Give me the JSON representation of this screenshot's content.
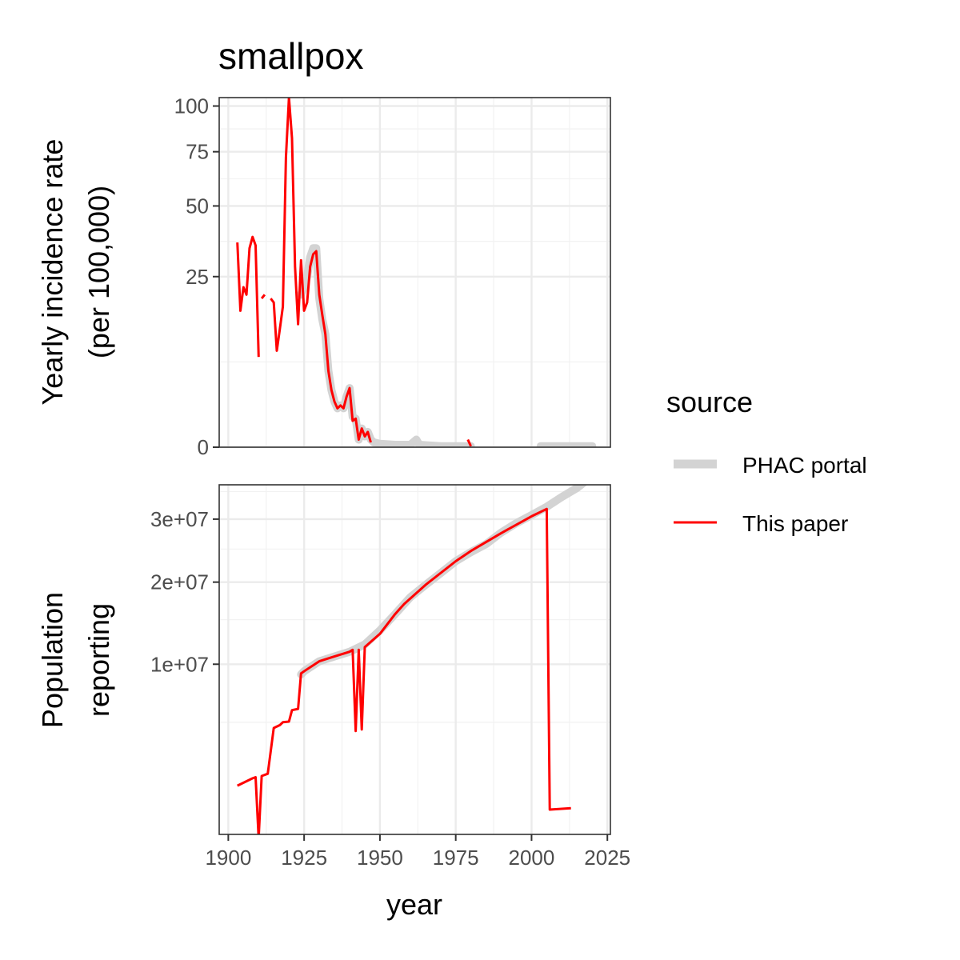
{
  "chart_data": {
    "type": "line",
    "title": "smallpox",
    "xlabel": "year",
    "x_ticks": [
      1900,
      1925,
      1950,
      1975,
      2000,
      2025
    ],
    "xlim": [
      1897,
      2026
    ],
    "grid": true,
    "legend": {
      "title": "source",
      "position": "right",
      "entries": [
        {
          "name": "PHAC portal",
          "color": "#d3d3d3"
        },
        {
          "name": "This paper",
          "color": "#ff0000"
        }
      ]
    },
    "panels": [
      {
        "id": "incidence",
        "ylabel_line1": "Yearly incidence rate",
        "ylabel_line2": "(per 100,000)",
        "y_scale": "sqrt",
        "ylim": [
          0,
          105
        ],
        "y_ticks": [
          0,
          25,
          50,
          75,
          100
        ],
        "y_tick_labels": [
          "0",
          "25",
          "50",
          "75",
          "100"
        ],
        "series": [
          {
            "name": "PHAC portal",
            "color": "#d3d3d3",
            "segments": [
              [
                [
                  1924,
                  20
                ],
                [
                  1925,
                  22
                ],
                [
                  1926,
                  25
                ],
                [
                  1927,
                  31
                ],
                [
                  1928,
                  34
                ],
                [
                  1929,
                  34
                ],
                [
                  1930,
                  19
                ],
                [
                  1931,
                  14
                ],
                [
                  1932,
                  11
                ],
                [
                  1933,
                  5
                ],
                [
                  1934,
                  2.8
                ],
                [
                  1935,
                  1.8
                ],
                [
                  1936,
                  1.3
                ],
                [
                  1937,
                  1.5
                ],
                [
                  1938,
                  1.3
                ],
                [
                  1939,
                  2.2
                ],
                [
                  1940,
                  3
                ],
                [
                  1941,
                  0.8
                ],
                [
                  1942,
                  0.7
                ],
                [
                  1943,
                  0.05
                ],
                [
                  1944,
                  0.3
                ],
                [
                  1945,
                  0.1
                ],
                [
                  1946,
                  0.2
                ],
                [
                  1947,
                  0.05
                ],
                [
                  1948,
                  0.02
                ],
                [
                  1950,
                  0.01
                ],
                [
                  1955,
                  0.005
                ],
                [
                  1960,
                  0.005
                ],
                [
                  1962,
                  0.05
                ],
                [
                  1963,
                  0.005
                ],
                [
                  1970,
                  0.001
                ],
                [
                  1980,
                  0.001
                ]
              ],
              [
                [
                  2003,
                  0.001
                ],
                [
                  2020,
                  0.001
                ]
              ]
            ]
          },
          {
            "name": "This paper",
            "color": "#ff0000",
            "segments": [
              [
                [
                  1903,
                  36
                ],
                [
                  1904,
                  16
                ],
                [
                  1905,
                  22
                ],
                [
                  1906,
                  20
                ],
                [
                  1907,
                  34
                ],
                [
                  1908,
                  38
                ],
                [
                  1909,
                  35
                ],
                [
                  1910,
                  7
                ]
              ],
              [
                [
                  1911,
                  19
                ],
                [
                  1912,
                  20
                ]
              ],
              [
                [
                  1914,
                  19
                ],
                [
                  1915,
                  18
                ],
                [
                  1916,
                  8
                ],
                [
                  1917,
                  12
                ],
                [
                  1918,
                  17
                ],
                [
                  1919,
                  72
                ],
                [
                  1920,
                  105
                ],
                [
                  1921,
                  82
                ],
                [
                  1922,
                  28
                ],
                [
                  1923,
                  13
                ],
                [
                  1924,
                  30
                ],
                [
                  1925,
                  16
                ],
                [
                  1926,
                  18
                ],
                [
                  1927,
                  28
                ],
                [
                  1928,
                  32
                ],
                [
                  1929,
                  33
                ],
                [
                  1930,
                  20
                ],
                [
                  1931,
                  15
                ],
                [
                  1932,
                  11
                ],
                [
                  1933,
                  5
                ],
                [
                  1934,
                  2.8
                ],
                [
                  1935,
                  1.8
                ],
                [
                  1936,
                  1.3
                ],
                [
                  1937,
                  1.5
                ],
                [
                  1938,
                  1.3
                ],
                [
                  1939,
                  2.2
                ],
                [
                  1940,
                  3
                ],
                [
                  1941,
                  0.6
                ],
                [
                  1942,
                  0.7
                ],
                [
                  1943,
                  0.05
                ],
                [
                  1944,
                  0.3
                ],
                [
                  1945,
                  0.1
                ],
                [
                  1946,
                  0.2
                ],
                [
                  1947,
                  0.02
                ]
              ],
              [
                [
                  1979,
                  0.05
                ],
                [
                  1980,
                  0.001
                ]
              ]
            ]
          }
        ]
      },
      {
        "id": "population",
        "ylabel_line1": "Population",
        "ylabel_line2": "reporting",
        "y_scale": "sqrt",
        "ylim": [
          200000,
          36300000
        ],
        "y_ticks": [
          10000000,
          20000000,
          30000000
        ],
        "y_tick_labels": [
          "1e+07",
          "2e+07",
          "3e+07"
        ],
        "y_minor": [
          5000000,
          15000000,
          25000000,
          35000000
        ],
        "series": [
          {
            "name": "PHAC portal",
            "color": "#d3d3d3",
            "segments": [
              [
                [
                  1924,
                  9000000
                ],
                [
                  1925,
                  9300000
                ],
                [
                  1930,
                  10300000
                ],
                [
                  1935,
                  10800000
                ],
                [
                  1940,
                  11300000
                ],
                [
                  1945,
                  12100000
                ],
                [
                  1950,
                  13700000
                ],
                [
                  1955,
                  15700000
                ],
                [
                  1960,
                  17900000
                ],
                [
                  1965,
                  19600000
                ],
                [
                  1970,
                  21300000
                ],
                [
                  1975,
                  23100000
                ],
                [
                  1980,
                  24500000
                ],
                [
                  1985,
                  25800000
                ],
                [
                  1990,
                  27700000
                ],
                [
                  1995,
                  29300000
                ],
                [
                  2000,
                  30700000
                ],
                [
                  2005,
                  32200000
                ],
                [
                  2010,
                  34000000
                ],
                [
                  2015,
                  35700000
                ],
                [
                  2020,
                  38000000
                ]
              ]
            ]
          },
          {
            "name": "This paper",
            "color": "#ff0000",
            "segments": [
              [
                [
                  1903,
                  1500000
                ],
                [
                  1908,
                  1800000
                ],
                [
                  1909,
                  1850000
                ],
                [
                  1910,
                  150000
                ],
                [
                  1911,
                  1900000
                ],
                [
                  1913,
                  2000000
                ],
                [
                  1915,
                  4600000
                ],
                [
                  1917,
                  4800000
                ],
                [
                  1918,
                  5000000
                ],
                [
                  1920,
                  5050000
                ],
                [
                  1921,
                  5900000
                ],
                [
                  1923,
                  6000000
                ],
                [
                  1924,
                  9100000
                ],
                [
                  1925,
                  9300000
                ],
                [
                  1930,
                  10300000
                ],
                [
                  1935,
                  10800000
                ],
                [
                  1940,
                  11300000
                ],
                [
                  1941,
                  11500000
                ],
                [
                  1942,
                  4400000
                ],
                [
                  1943,
                  11500000
                ],
                [
                  1944,
                  4500000
                ],
                [
                  1945,
                  11800000
                ],
                [
                  1950,
                  13300000
                ],
                [
                  1955,
                  15700000
                ],
                [
                  1958,
                  17000000
                ],
                [
                  1965,
                  19600000
                ],
                [
                  1975,
                  23100000
                ],
                [
                  1980,
                  24700000
                ],
                [
                  1990,
                  27600000
                ],
                [
                  2000,
                  30500000
                ],
                [
                  2005,
                  31800000
                ],
                [
                  2006,
                  710000
                ],
                [
                  2013,
                  750000
                ]
              ]
            ]
          }
        ]
      }
    ]
  }
}
